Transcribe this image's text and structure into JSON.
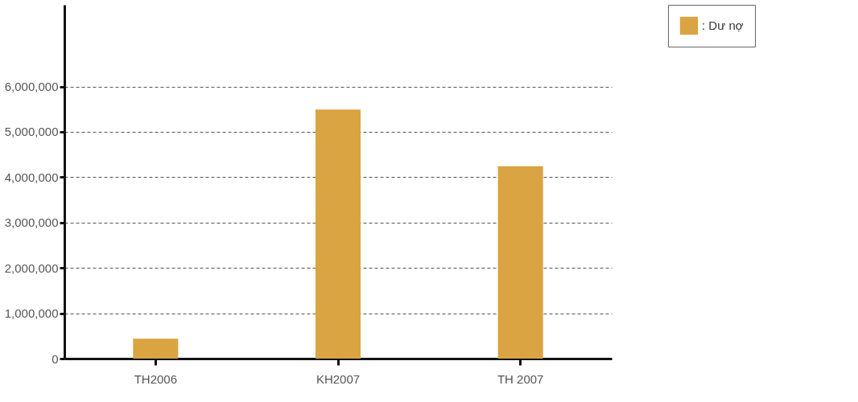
{
  "chart_data": {
    "type": "bar",
    "categories": [
      "TH2006",
      "KH2007",
      "TH 2007"
    ],
    "series": [
      {
        "name": ": Dư nợ",
        "color": "#d9a441",
        "values": [
          440000,
          5490000,
          4240000
        ]
      }
    ],
    "ylim": [
      0,
      7800000
    ],
    "yticks": [
      0,
      {
        "value": 1000000,
        "label": "1,000,000"
      },
      {
        "value": 2000000,
        "label": "2,000,000"
      },
      {
        "value": 3000000,
        "label": "3,000,000"
      },
      {
        "value": 4000000,
        "label": "4,000,000"
      },
      {
        "value": 5000000,
        "label": "5,000,000"
      },
      {
        "value": 6000000,
        "label": "6,000,000"
      }
    ],
    "grid": "y",
    "legend": "right"
  }
}
